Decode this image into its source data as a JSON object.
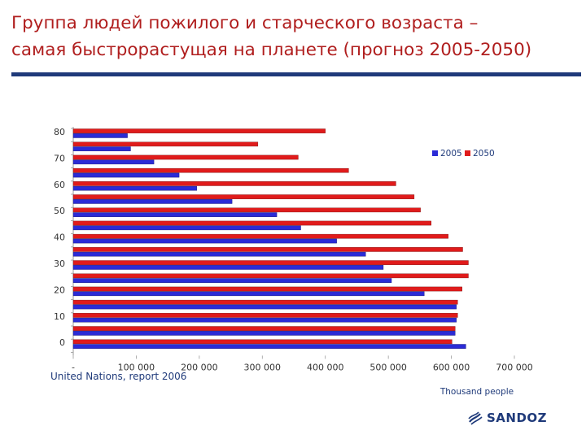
{
  "slide": {
    "title_line1": "Группа людей пожилого и старческого возраста –",
    "title_line2": "самая быстрорастущая на планете (прогноз 2005-2050)",
    "source": "United Nations, report 2006",
    "brand": "SANDOZ",
    "accent_color": "#b01e1e",
    "rule_color": "#1f3a7a"
  },
  "chart_data": {
    "type": "bar",
    "orientation": "horizontal",
    "title": "",
    "xlabel": "Thousand people",
    "ylabel": "",
    "xlim": [
      0,
      700000
    ],
    "x_ticks": [
      0,
      100000,
      200000,
      300000,
      400000,
      500000,
      600000,
      700000
    ],
    "x_tick_labels": [
      "-",
      "100 000",
      "200 000",
      "300 000",
      "400 000",
      "500 000",
      "600 000",
      "700 000"
    ],
    "y_tick_labels": [
      "0",
      "10",
      "20",
      "30",
      "40",
      "50",
      "60",
      "70",
      "80"
    ],
    "grid": false,
    "legend_position": "top-right",
    "categories": [
      "0",
      "5",
      "10",
      "15",
      "20",
      "25",
      "30",
      "35",
      "40",
      "45",
      "50",
      "55",
      "60",
      "65",
      "70",
      "75",
      "80"
    ],
    "series": [
      {
        "name": "2005",
        "color": "#2b2bd6",
        "values": [
          623000,
          606000,
          608000,
          608000,
          557000,
          505000,
          492000,
          464000,
          418000,
          361000,
          323000,
          252000,
          196000,
          168000,
          128000,
          91000,
          86000
        ]
      },
      {
        "name": "2050",
        "color": "#e01b1b",
        "values": [
          601000,
          606000,
          610000,
          610000,
          617000,
          627000,
          627000,
          618000,
          595000,
          568000,
          551000,
          541000,
          512000,
          437000,
          357000,
          293000,
          400000
        ]
      }
    ]
  }
}
